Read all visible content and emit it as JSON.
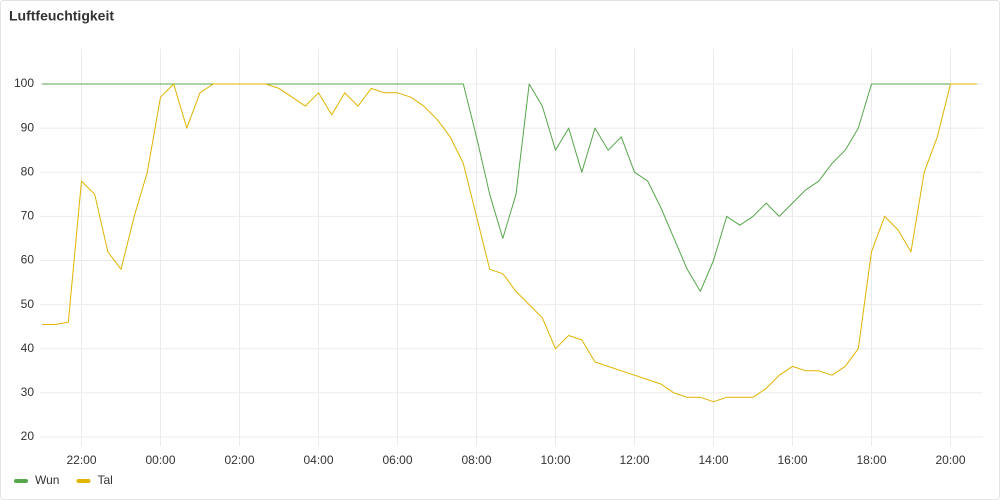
{
  "chart_data": {
    "type": "line",
    "title": "Luftfeuchtigkeit",
    "x": [
      "21:00",
      "21:20",
      "21:40",
      "22:00",
      "22:20",
      "22:40",
      "23:00",
      "23:20",
      "23:40",
      "00:00",
      "00:20",
      "00:40",
      "01:00",
      "01:20",
      "01:40",
      "02:00",
      "02:20",
      "02:40",
      "03:00",
      "03:20",
      "03:40",
      "04:00",
      "04:20",
      "04:40",
      "05:00",
      "05:20",
      "05:40",
      "06:00",
      "06:20",
      "06:40",
      "07:00",
      "07:20",
      "07:40",
      "08:00",
      "08:20",
      "08:40",
      "09:00",
      "09:20",
      "09:40",
      "10:00",
      "10:20",
      "10:40",
      "11:00",
      "11:20",
      "11:40",
      "12:00",
      "12:20",
      "12:40",
      "13:00",
      "13:20",
      "13:40",
      "14:00",
      "14:20",
      "14:40",
      "15:00",
      "15:20",
      "15:40",
      "16:00",
      "16:20",
      "16:40",
      "17:00",
      "17:20",
      "17:40",
      "18:00",
      "18:20",
      "18:40",
      "19:00",
      "19:20",
      "19:40",
      "20:00",
      "20:20",
      "20:40"
    ],
    "series": [
      {
        "name": "Wun",
        "color": "#56a64b",
        "values": [
          100,
          100,
          100,
          100,
          100,
          100,
          100,
          100,
          100,
          100,
          100,
          100,
          100,
          100,
          100,
          100,
          100,
          100,
          100,
          100,
          100,
          100,
          100,
          100,
          100,
          100,
          100,
          100,
          100,
          100,
          100,
          100,
          100,
          88,
          75,
          65,
          75,
          100,
          95,
          85,
          90,
          80,
          90,
          85,
          88,
          80,
          78,
          72,
          65,
          58,
          53,
          60,
          70,
          68,
          70,
          73,
          70,
          73,
          76,
          78,
          82,
          85,
          90,
          100,
          100,
          100,
          100,
          100,
          100,
          100,
          100,
          100
        ]
      },
      {
        "name": "Tal",
        "color": "#e0b400",
        "values": [
          45.5,
          45.5,
          46,
          78,
          75,
          62,
          58,
          70,
          80,
          97,
          100,
          90,
          98,
          100,
          100,
          100,
          100,
          100,
          99,
          97,
          95,
          98,
          93,
          98,
          95,
          99,
          98,
          98,
          97,
          95,
          92,
          88,
          82,
          70,
          58,
          57,
          53,
          50,
          47,
          40,
          43,
          42,
          37,
          36,
          35,
          34,
          33,
          32,
          30,
          29,
          29,
          28,
          29,
          29,
          29,
          31,
          34,
          36,
          35,
          35,
          34,
          36,
          40,
          62,
          70,
          67,
          62,
          80,
          88,
          100,
          100,
          100
        ]
      }
    ],
    "xticks": [
      "22:00",
      "00:00",
      "02:00",
      "04:00",
      "06:00",
      "08:00",
      "10:00",
      "12:00",
      "14:00",
      "16:00",
      "18:00",
      "20:00"
    ],
    "ylim": [
      18,
      108
    ],
    "yticks": [
      20,
      30,
      40,
      50,
      60,
      70,
      80,
      90,
      100
    ],
    "grid": true,
    "legend": "bottom-left"
  }
}
